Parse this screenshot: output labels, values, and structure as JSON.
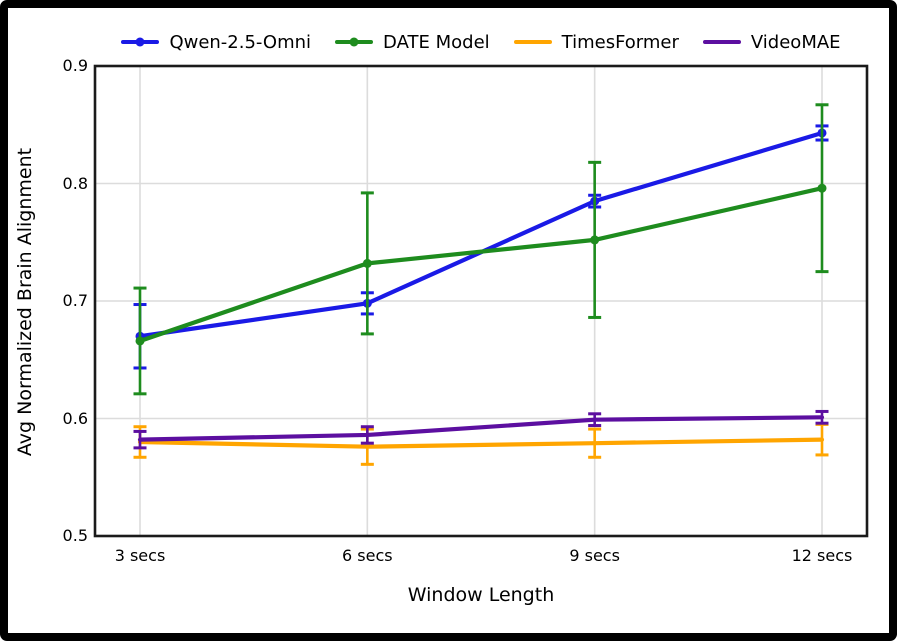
{
  "chart_data": {
    "type": "line",
    "title": "",
    "xlabel": "Window Length",
    "ylabel": "Avg Normalized Brain Alignment",
    "categories": [
      "3 secs",
      "6 secs",
      "9 secs",
      "12 secs"
    ],
    "ylim": [
      0.5,
      0.9
    ],
    "yticks": [
      0.5,
      0.6,
      0.7,
      0.8,
      0.9
    ],
    "ytick_labels": [
      "0.5",
      "0.6",
      "0.7",
      "0.8",
      "0.9"
    ],
    "grid": true,
    "legend_position": "top-center",
    "error_bars": true,
    "colors": {
      "grid": "#dcdcdc",
      "frame": "#1a1a1a",
      "text": "#000000"
    },
    "series": [
      {
        "name": "Qwen-2.5-Omni",
        "color": "#1a1ae6",
        "marker": "circle",
        "values": [
          0.67,
          0.698,
          0.785,
          0.843
        ],
        "err": [
          0.027,
          0.009,
          0.005,
          0.006
        ]
      },
      {
        "name": "DATE Model",
        "color": "#1e8c1e",
        "marker": "circle",
        "values": [
          0.666,
          0.732,
          0.752,
          0.796
        ],
        "err": [
          0.045,
          0.06,
          0.066,
          0.071
        ]
      },
      {
        "name": "TimesFormer",
        "color": "#ffa500",
        "marker": "none",
        "values": [
          0.58,
          0.576,
          0.579,
          0.582
        ],
        "err": [
          0.013,
          0.015,
          0.012,
          0.013
        ]
      },
      {
        "name": "VideoMAE",
        "color": "#5c0fa0",
        "marker": "none",
        "values": [
          0.582,
          0.586,
          0.599,
          0.601
        ],
        "err": [
          0.007,
          0.007,
          0.005,
          0.005
        ]
      }
    ]
  }
}
